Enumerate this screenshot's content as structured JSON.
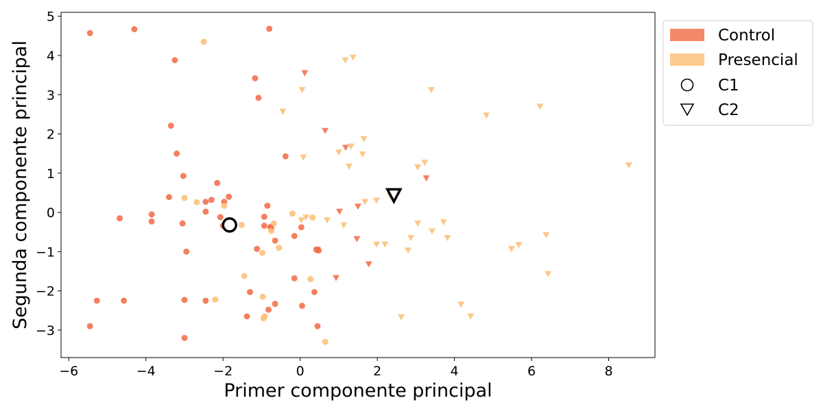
{
  "chart_data": {
    "type": "scatter",
    "xlabel": "Primer componente principal",
    "ylabel": "Segunda componente principal",
    "xlim": [
      -6.2,
      9.2
    ],
    "ylim": [
      -3.7,
      5.1
    ],
    "xticks": [
      -6,
      -4,
      -2,
      0,
      2,
      4,
      6,
      8
    ],
    "yticks": [
      -3,
      -2,
      -1,
      0,
      1,
      2,
      3,
      4,
      5
    ],
    "xtick_labels": [
      "−6",
      "−4",
      "−2",
      "0",
      "2",
      "4",
      "6",
      "8"
    ],
    "ytick_labels": [
      "−3",
      "−2",
      "−1",
      "0",
      "1",
      "2",
      "3",
      "4",
      "5"
    ],
    "grid": false,
    "legend_position": "outside-top-right",
    "colors": {
      "control": "#f26a45",
      "presencial": "#fdbd74",
      "centroid": "#000000"
    },
    "legend": [
      {
        "label": "Control",
        "kind": "patch",
        "color": "#f26a45"
      },
      {
        "label": "Presencial",
        "kind": "patch",
        "color": "#fdbd74"
      },
      {
        "label": "C1",
        "kind": "circle"
      },
      {
        "label": "C2",
        "kind": "triangle-down"
      }
    ],
    "series": [
      {
        "name": "Control",
        "group": "C1",
        "marker": "circle",
        "color": "#f26a45",
        "points": [
          [
            -5.45,
            4.57
          ],
          [
            -4.3,
            4.67
          ],
          [
            -0.8,
            4.68
          ],
          [
            -3.25,
            3.88
          ],
          [
            -1.17,
            3.42
          ],
          [
            -1.08,
            2.92
          ],
          [
            -3.35,
            2.21
          ],
          [
            -3.2,
            1.5
          ],
          [
            -0.38,
            1.43
          ],
          [
            -3.03,
            0.93
          ],
          [
            -2.15,
            0.75
          ],
          [
            -3.4,
            0.39
          ],
          [
            -1.85,
            0.4
          ],
          [
            -2.3,
            0.32
          ],
          [
            -2.45,
            0.27
          ],
          [
            -1.97,
            0.27
          ],
          [
            -0.85,
            0.17
          ],
          [
            -2.45,
            0.02
          ],
          [
            -3.85,
            -0.05
          ],
          [
            -2.07,
            -0.12
          ],
          [
            -0.93,
            -0.11
          ],
          [
            -4.68,
            -0.15
          ],
          [
            -3.85,
            -0.23
          ],
          [
            -3.05,
            -0.28
          ],
          [
            -2.0,
            -0.34
          ],
          [
            -0.93,
            -0.34
          ],
          [
            -0.75,
            -0.4
          ],
          [
            -0.15,
            -0.6
          ],
          [
            -0.65,
            -0.72
          ],
          [
            -0.77,
            -0.37
          ],
          [
            0.03,
            -0.38
          ],
          [
            -1.12,
            -0.93
          ],
          [
            0.48,
            -0.97
          ],
          [
            0.42,
            -0.95
          ],
          [
            -2.95,
            -1.0
          ],
          [
            -0.15,
            -1.68
          ],
          [
            -1.3,
            -2.03
          ],
          [
            0.37,
            -2.03
          ],
          [
            -5.27,
            -2.25
          ],
          [
            -4.57,
            -2.25
          ],
          [
            -3.0,
            -2.23
          ],
          [
            -2.45,
            -2.25
          ],
          [
            -0.65,
            -2.33
          ],
          [
            0.05,
            -2.38
          ],
          [
            -0.82,
            -2.48
          ],
          [
            -1.38,
            -2.65
          ],
          [
            0.45,
            -2.9
          ],
          [
            -5.45,
            -2.9
          ],
          [
            -3.0,
            -3.2
          ]
        ]
      },
      {
        "name": "Presencial",
        "group": "C1",
        "marker": "circle",
        "color": "#fdbd74",
        "points": [
          [
            -2.5,
            4.35
          ],
          [
            -3.0,
            0.37
          ],
          [
            -2.68,
            0.26
          ],
          [
            -1.97,
            0.17
          ],
          [
            -0.2,
            -0.03
          ],
          [
            0.32,
            -0.13
          ],
          [
            -1.52,
            -0.32
          ],
          [
            -0.68,
            -0.28
          ],
          [
            -0.75,
            -0.47
          ],
          [
            -0.55,
            -0.9
          ],
          [
            -0.98,
            -1.03
          ],
          [
            -1.45,
            -1.62
          ],
          [
            0.27,
            -1.7
          ],
          [
            -2.2,
            -2.22
          ],
          [
            -0.97,
            -2.15
          ],
          [
            -0.92,
            -2.65
          ],
          [
            -0.95,
            -2.7
          ],
          [
            0.65,
            -3.3
          ]
        ]
      },
      {
        "name": "Control",
        "group": "C2",
        "marker": "triangle-down",
        "color": "#f26a45",
        "points": [
          [
            0.12,
            3.55
          ],
          [
            0.65,
            2.08
          ],
          [
            1.18,
            1.65
          ],
          [
            3.27,
            0.87
          ],
          [
            1.5,
            0.15
          ],
          [
            1.02,
            0.02
          ],
          [
            1.47,
            -0.68
          ],
          [
            1.78,
            -1.32
          ],
          [
            0.93,
            -1.67
          ],
          [
            0.45,
            -0.95
          ]
        ]
      },
      {
        "name": "Presencial",
        "group": "C2",
        "marker": "triangle-down",
        "color": "#fdbd74",
        "points": [
          [
            1.37,
            3.95
          ],
          [
            1.17,
            3.88
          ],
          [
            3.4,
            3.12
          ],
          [
            0.05,
            3.12
          ],
          [
            -0.45,
            2.57
          ],
          [
            6.22,
            2.7
          ],
          [
            4.83,
            2.47
          ],
          [
            1.65,
            1.87
          ],
          [
            1.32,
            1.68
          ],
          [
            1.0,
            1.53
          ],
          [
            1.62,
            1.48
          ],
          [
            0.08,
            1.4
          ],
          [
            1.27,
            1.17
          ],
          [
            3.05,
            1.15
          ],
          [
            3.23,
            1.27
          ],
          [
            8.52,
            1.2
          ],
          [
            2.33,
            0.43
          ],
          [
            1.68,
            0.27
          ],
          [
            1.98,
            0.3
          ],
          [
            0.7,
            -0.2
          ],
          [
            0.03,
            -0.2
          ],
          [
            0.15,
            -0.13
          ],
          [
            1.13,
            -0.33
          ],
          [
            3.05,
            -0.28
          ],
          [
            3.72,
            -0.25
          ],
          [
            3.42,
            -0.48
          ],
          [
            6.38,
            -0.58
          ],
          [
            2.87,
            -0.65
          ],
          [
            3.82,
            -0.65
          ],
          [
            1.98,
            -0.82
          ],
          [
            2.2,
            -0.82
          ],
          [
            5.67,
            -0.83
          ],
          [
            5.48,
            -0.93
          ],
          [
            2.8,
            -0.97
          ],
          [
            6.43,
            -1.57
          ],
          [
            4.17,
            -2.35
          ],
          [
            4.42,
            -2.65
          ],
          [
            2.62,
            -2.67
          ]
        ]
      }
    ],
    "centroids": [
      {
        "name": "C1",
        "marker": "circle",
        "x": -1.83,
        "y": -0.32
      },
      {
        "name": "C2",
        "marker": "triangle-down",
        "x": 2.43,
        "y": 0.45
      }
    ]
  }
}
